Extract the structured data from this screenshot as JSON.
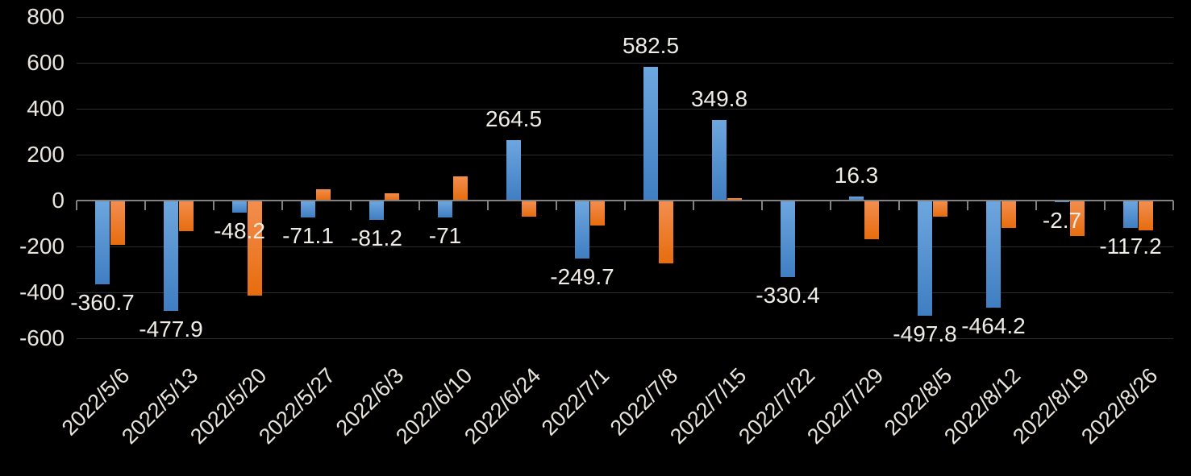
{
  "chart_data": {
    "type": "bar",
    "title": "",
    "xlabel": "",
    "ylabel": "",
    "categories": [
      "2022/5/6",
      "2022/5/13",
      "2022/5/20",
      "2022/5/27",
      "2022/6/3",
      "2022/6/10",
      "2022/6/24",
      "2022/7/1",
      "2022/7/8",
      "2022/7/15",
      "2022/7/22",
      "2022/7/29",
      "2022/8/5",
      "2022/8/12",
      "2022/8/19",
      "2022/8/26"
    ],
    "series": [
      {
        "name": "blue",
        "values": [
          -360.7,
          -477.9,
          -48.2,
          -71.1,
          -81.2,
          -71,
          264.5,
          -249.7,
          582.5,
          349.8,
          -330.4,
          16.3,
          -497.8,
          -464.2,
          -2.7,
          -117.2
        ],
        "data_labels": [
          "-360.7",
          "-477.9",
          "-48.2",
          "-71.1",
          "-81.2",
          "-71",
          "264.5",
          "-249.7",
          "582.5",
          "349.8",
          "-330.4",
          "16.3",
          "-497.8",
          "-464.2",
          "-2.7",
          "-117.2"
        ],
        "color_top": "#6ea6de",
        "color_bottom": "#3f7ec2"
      },
      {
        "name": "orange",
        "values": [
          -190,
          -130,
          -410,
          50,
          30,
          105,
          -65,
          -105,
          -270,
          10,
          0,
          -165,
          -65,
          -115,
          -150,
          -125
        ],
        "data_labels": [],
        "color_top": "#f28e4f",
        "color_bottom": "#e76c0d"
      }
    ],
    "ylim": [
      -600,
      800
    ],
    "yticks": [
      800,
      600,
      400,
      200,
      0,
      -200,
      -400,
      -600
    ],
    "grid": true,
    "legend_position": "none",
    "colors": {
      "background": "#000000",
      "axis_line": "#828282",
      "gridline": "#2d2d2d",
      "tick_label": "#e9e4dc",
      "data_label": "#f0ede7"
    }
  }
}
